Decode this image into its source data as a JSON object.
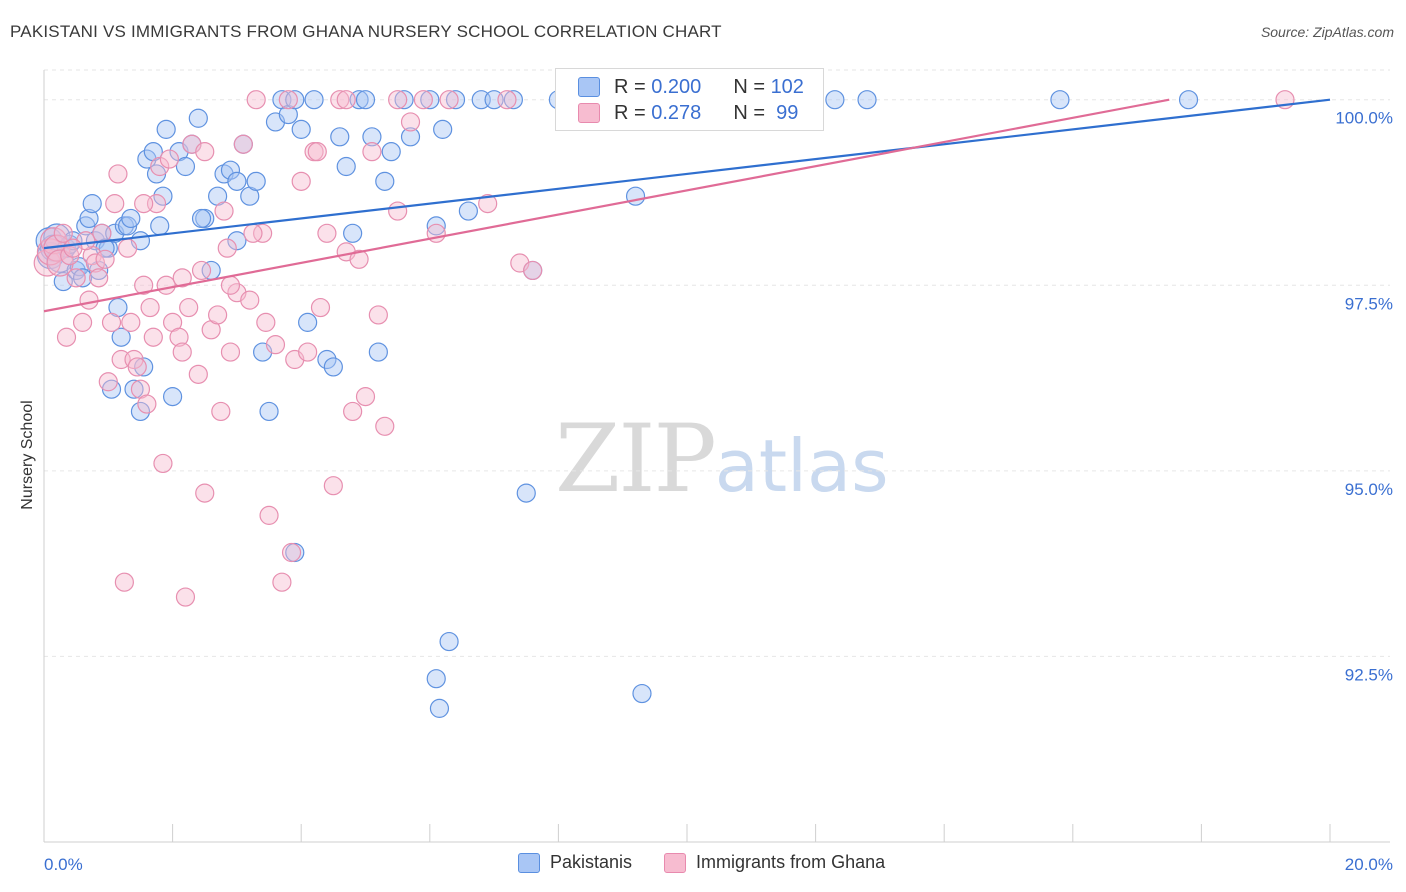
{
  "title": "PAKISTANI VS IMMIGRANTS FROM GHANA NURSERY SCHOOL CORRELATION CHART",
  "source": "Source: ZipAtlas.com",
  "watermark": {
    "zip": "ZIP",
    "atlas": "atlas"
  },
  "colors": {
    "blue": "#2f6fcf",
    "pink": "#e06b96",
    "blue_fill": "#a9c6f5",
    "pink_fill": "#f7bcd0",
    "axis_label": "#3a6fd1"
  },
  "legend": {
    "rows": [
      {
        "r_label": "R = ",
        "r_value": "0.200",
        "n_label": "N = ",
        "n_value": "102"
      },
      {
        "r_label": "R = ",
        "r_value": "0.278",
        "n_label": "N = ",
        "n_value": "99"
      }
    ]
  },
  "chart_data": {
    "type": "scatter",
    "title": "PAKISTANI VS IMMIGRANTS FROM GHANA NURSERY SCHOOL CORRELATION CHART",
    "xlabel": "",
    "ylabel": "Nursery School",
    "xlim": [
      0,
      20
    ],
    "ylim": [
      90.0,
      100.4
    ],
    "x_tick_labels": [
      "0.0%",
      "20.0%"
    ],
    "y_ticks": [
      92.5,
      95.0,
      97.5,
      100.0
    ],
    "y_tick_labels": [
      "92.5%",
      "95.0%",
      "97.5%",
      "100.0%"
    ],
    "grid": true,
    "series": [
      {
        "name": "Pakistanis",
        "trend": {
          "x": [
            0,
            20
          ],
          "y": [
            98.0,
            100.0
          ]
        },
        "points": [
          [
            0.08,
            98.1
          ],
          [
            0.1,
            97.9
          ],
          [
            0.15,
            98.0
          ],
          [
            0.2,
            98.15
          ],
          [
            0.25,
            97.85
          ],
          [
            0.3,
            97.55
          ],
          [
            0.35,
            98.0
          ],
          [
            0.4,
            98.05
          ],
          [
            0.45,
            98.1
          ],
          [
            0.5,
            97.7
          ],
          [
            0.55,
            97.75
          ],
          [
            0.6,
            97.6
          ],
          [
            0.65,
            98.3
          ],
          [
            0.7,
            98.4
          ],
          [
            0.75,
            98.6
          ],
          [
            0.8,
            98.1
          ],
          [
            0.85,
            97.7
          ],
          [
            0.9,
            98.2
          ],
          [
            1.0,
            98.0
          ],
          [
            1.1,
            98.2
          ],
          [
            1.15,
            97.2
          ],
          [
            1.2,
            96.8
          ],
          [
            1.25,
            98.3
          ],
          [
            1.3,
            98.3
          ],
          [
            1.35,
            98.4
          ],
          [
            1.4,
            96.1
          ],
          [
            1.5,
            95.8
          ],
          [
            1.55,
            96.4
          ],
          [
            1.6,
            99.2
          ],
          [
            1.7,
            99.3
          ],
          [
            1.75,
            99.0
          ],
          [
            1.8,
            98.3
          ],
          [
            1.85,
            98.7
          ],
          [
            1.9,
            99.6
          ],
          [
            2.0,
            96.0
          ],
          [
            2.1,
            99.3
          ],
          [
            2.2,
            99.1
          ],
          [
            2.3,
            99.4
          ],
          [
            2.4,
            99.75
          ],
          [
            2.5,
            98.4
          ],
          [
            2.6,
            97.7
          ],
          [
            2.7,
            98.7
          ],
          [
            2.8,
            99.0
          ],
          [
            2.9,
            99.05
          ],
          [
            3.0,
            98.1
          ],
          [
            3.1,
            99.4
          ],
          [
            3.2,
            98.7
          ],
          [
            3.3,
            98.9
          ],
          [
            3.4,
            96.6
          ],
          [
            3.5,
            95.8
          ],
          [
            3.6,
            99.7
          ],
          [
            3.7,
            100.0
          ],
          [
            3.8,
            99.8
          ],
          [
            3.9,
            100.0
          ],
          [
            4.0,
            99.6
          ],
          [
            4.1,
            97.0
          ],
          [
            4.2,
            100.0
          ],
          [
            4.4,
            96.5
          ],
          [
            4.5,
            96.4
          ],
          [
            4.6,
            99.5
          ],
          [
            4.7,
            99.1
          ],
          [
            4.8,
            98.2
          ],
          [
            4.9,
            100.0
          ],
          [
            5.0,
            100.0
          ],
          [
            5.1,
            99.5
          ],
          [
            5.2,
            96.6
          ],
          [
            5.3,
            98.9
          ],
          [
            5.4,
            99.3
          ],
          [
            5.6,
            100.0
          ],
          [
            5.7,
            99.5
          ],
          [
            6.0,
            100.0
          ],
          [
            6.1,
            98.3
          ],
          [
            6.2,
            99.6
          ],
          [
            6.4,
            100.0
          ],
          [
            6.6,
            98.5
          ],
          [
            6.8,
            100.0
          ],
          [
            7.0,
            100.0
          ],
          [
            7.3,
            100.0
          ],
          [
            7.5,
            94.7
          ],
          [
            7.6,
            97.7
          ],
          [
            8.0,
            100.0
          ],
          [
            8.2,
            100.0
          ],
          [
            8.4,
            100.0
          ],
          [
            9.0,
            100.0
          ],
          [
            9.2,
            98.7
          ],
          [
            9.4,
            100.0
          ],
          [
            10.0,
            100.0
          ],
          [
            10.5,
            100.0
          ],
          [
            12.3,
            100.0
          ],
          [
            12.8,
            100.0
          ],
          [
            6.3,
            92.7
          ],
          [
            6.1,
            92.2
          ],
          [
            6.15,
            91.8
          ],
          [
            9.3,
            92.0
          ],
          [
            3.9,
            93.9
          ],
          [
            1.5,
            98.1
          ],
          [
            0.95,
            98.0
          ],
          [
            1.05,
            96.1
          ],
          [
            2.45,
            98.4
          ],
          [
            3.0,
            98.9
          ],
          [
            15.8,
            100.0
          ],
          [
            17.8,
            100.0
          ]
        ]
      },
      {
        "name": "Immigrants from Ghana",
        "trend": {
          "x": [
            0,
            17.5
          ],
          "y": [
            97.15,
            100.0
          ]
        },
        "points": [
          [
            0.05,
            97.8
          ],
          [
            0.1,
            97.95
          ],
          [
            0.15,
            98.1
          ],
          [
            0.2,
            98.0
          ],
          [
            0.25,
            97.8
          ],
          [
            0.3,
            98.2
          ],
          [
            0.35,
            96.8
          ],
          [
            0.4,
            97.9
          ],
          [
            0.5,
            97.6
          ],
          [
            0.6,
            97.0
          ],
          [
            0.7,
            97.3
          ],
          [
            0.75,
            97.9
          ],
          [
            0.8,
            97.8
          ],
          [
            0.9,
            98.2
          ],
          [
            0.95,
            97.85
          ],
          [
            1.0,
            96.2
          ],
          [
            1.05,
            97.0
          ],
          [
            1.1,
            98.6
          ],
          [
            1.15,
            99.0
          ],
          [
            1.2,
            96.5
          ],
          [
            1.25,
            93.5
          ],
          [
            1.3,
            98.0
          ],
          [
            1.35,
            97.0
          ],
          [
            1.4,
            96.5
          ],
          [
            1.45,
            96.4
          ],
          [
            1.5,
            96.1
          ],
          [
            1.55,
            97.5
          ],
          [
            1.6,
            95.9
          ],
          [
            1.7,
            96.8
          ],
          [
            1.75,
            98.6
          ],
          [
            1.8,
            99.1
          ],
          [
            1.85,
            95.1
          ],
          [
            1.9,
            97.5
          ],
          [
            2.0,
            97.0
          ],
          [
            2.1,
            96.8
          ],
          [
            2.15,
            96.6
          ],
          [
            2.2,
            93.3
          ],
          [
            2.25,
            97.2
          ],
          [
            2.3,
            99.4
          ],
          [
            2.4,
            96.3
          ],
          [
            2.45,
            97.7
          ],
          [
            2.5,
            94.7
          ],
          [
            2.6,
            96.9
          ],
          [
            2.7,
            97.1
          ],
          [
            2.75,
            95.8
          ],
          [
            2.8,
            98.5
          ],
          [
            2.9,
            96.6
          ],
          [
            3.0,
            97.4
          ],
          [
            3.1,
            99.4
          ],
          [
            3.2,
            97.3
          ],
          [
            3.3,
            100.0
          ],
          [
            3.4,
            98.2
          ],
          [
            3.5,
            94.4
          ],
          [
            3.6,
            96.7
          ],
          [
            3.7,
            93.5
          ],
          [
            3.8,
            100.0
          ],
          [
            3.9,
            96.5
          ],
          [
            4.0,
            98.9
          ],
          [
            4.1,
            96.6
          ],
          [
            4.2,
            99.3
          ],
          [
            4.3,
            97.2
          ],
          [
            4.4,
            98.2
          ],
          [
            4.5,
            94.8
          ],
          [
            4.6,
            100.0
          ],
          [
            4.7,
            97.95
          ],
          [
            4.8,
            95.8
          ],
          [
            4.9,
            97.85
          ],
          [
            5.0,
            96.0
          ],
          [
            5.1,
            99.3
          ],
          [
            5.2,
            97.1
          ],
          [
            5.3,
            95.6
          ],
          [
            5.5,
            100.0
          ],
          [
            5.7,
            99.7
          ],
          [
            5.9,
            100.0
          ],
          [
            6.1,
            98.2
          ],
          [
            6.3,
            100.0
          ],
          [
            6.9,
            98.6
          ],
          [
            7.2,
            100.0
          ],
          [
            7.4,
            97.8
          ],
          [
            7.6,
            97.7
          ],
          [
            9.3,
            100.0
          ],
          [
            10.0,
            100.0
          ],
          [
            19.3,
            100.0
          ],
          [
            3.85,
            93.9
          ],
          [
            2.9,
            97.5
          ],
          [
            4.25,
            99.3
          ],
          [
            1.55,
            98.6
          ],
          [
            0.65,
            98.1
          ],
          [
            0.45,
            98.0
          ],
          [
            1.95,
            99.2
          ],
          [
            2.85,
            98.0
          ],
          [
            3.25,
            98.2
          ],
          [
            2.5,
            99.3
          ],
          [
            4.7,
            100.0
          ],
          [
            5.5,
            98.5
          ],
          [
            3.45,
            97.0
          ],
          [
            1.65,
            97.2
          ],
          [
            0.85,
            97.6
          ],
          [
            2.15,
            97.6
          ]
        ]
      }
    ]
  },
  "bottom_legend": [
    {
      "label": "Pakistanis"
    },
    {
      "label": "Immigrants from Ghana"
    }
  ]
}
